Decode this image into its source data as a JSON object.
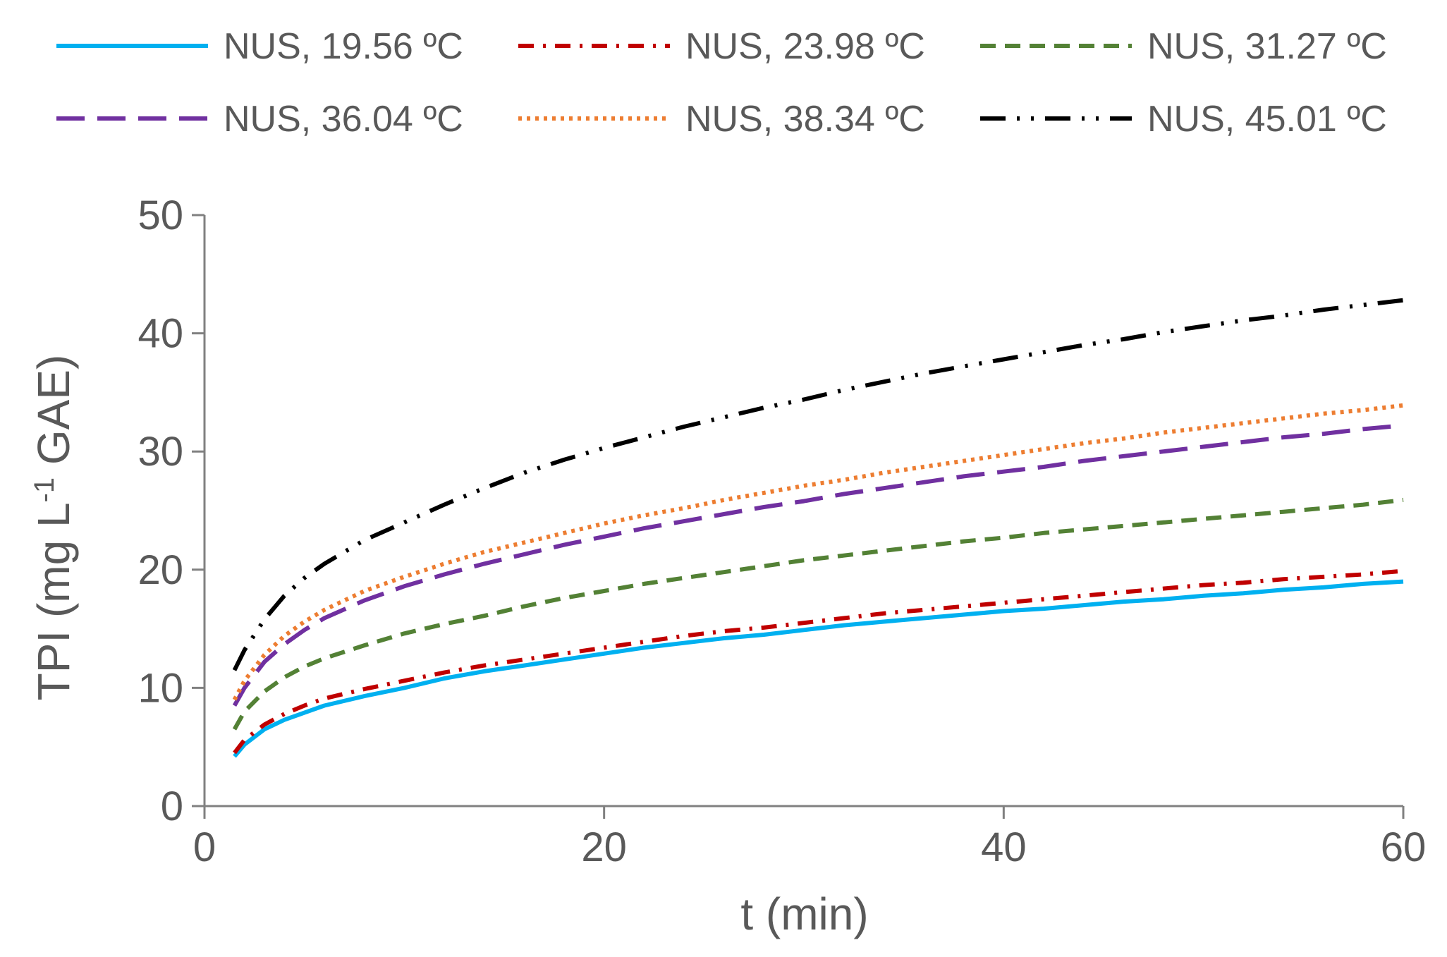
{
  "chart_data": {
    "type": "line",
    "xlabel": "t (min)",
    "ylabel": {
      "main": "TPI (mg L",
      "superscript": "-1",
      "suffix": " GAE)"
    },
    "xlim": [
      0,
      60
    ],
    "ylim": [
      0,
      50
    ],
    "xticks": [
      0,
      20,
      40,
      60
    ],
    "yticks": [
      0,
      10,
      20,
      30,
      40,
      50
    ],
    "grid": false,
    "legend_position": "top",
    "x": [
      1.5,
      2,
      3,
      4,
      5,
      6,
      8,
      10,
      12,
      14,
      16,
      18,
      20,
      22,
      24,
      26,
      28,
      30,
      32,
      34,
      36,
      38,
      40,
      42,
      44,
      46,
      48,
      50,
      52,
      54,
      56,
      58,
      60
    ],
    "series": [
      {
        "name": "NUS, 19.56 ºC",
        "color": "#00B0F0",
        "dash": "solid",
        "values": [
          4.2,
          5.2,
          6.5,
          7.3,
          7.9,
          8.5,
          9.3,
          10.0,
          10.8,
          11.4,
          11.9,
          12.4,
          12.9,
          13.4,
          13.8,
          14.2,
          14.5,
          14.9,
          15.3,
          15.6,
          15.9,
          16.2,
          16.5,
          16.7,
          17.0,
          17.3,
          17.5,
          17.8,
          18.0,
          18.3,
          18.5,
          18.8,
          19.0
        ]
      },
      {
        "name": "NUS, 23.98 ºC",
        "color": "#C00000",
        "dash": "dashdot",
        "values": [
          4.5,
          5.6,
          6.9,
          7.8,
          8.5,
          9.1,
          9.9,
          10.6,
          11.3,
          11.9,
          12.4,
          12.9,
          13.4,
          13.9,
          14.4,
          14.8,
          15.1,
          15.5,
          15.9,
          16.3,
          16.6,
          16.9,
          17.2,
          17.5,
          17.8,
          18.1,
          18.4,
          18.7,
          18.9,
          19.2,
          19.4,
          19.6,
          19.9
        ]
      },
      {
        "name": "NUS, 31.27 ºC",
        "color": "#538135",
        "dash": "dashed",
        "values": [
          6.5,
          8.0,
          9.7,
          10.9,
          11.8,
          12.5,
          13.6,
          14.6,
          15.4,
          16.1,
          16.9,
          17.6,
          18.2,
          18.8,
          19.3,
          19.8,
          20.3,
          20.8,
          21.2,
          21.6,
          22.0,
          22.4,
          22.7,
          23.1,
          23.4,
          23.7,
          24.0,
          24.3,
          24.6,
          24.9,
          25.2,
          25.5,
          25.9
        ]
      },
      {
        "name": "NUS, 36.04 ºC",
        "color": "#7030A0",
        "dash": "longdash",
        "values": [
          8.5,
          10.0,
          12.2,
          13.7,
          14.9,
          15.9,
          17.4,
          18.6,
          19.6,
          20.5,
          21.3,
          22.1,
          22.8,
          23.5,
          24.1,
          24.7,
          25.3,
          25.8,
          26.4,
          26.9,
          27.4,
          27.9,
          28.3,
          28.7,
          29.2,
          29.6,
          30.0,
          30.4,
          30.8,
          31.2,
          31.5,
          31.9,
          32.2
        ]
      },
      {
        "name": "NUS, 38.34 ºC",
        "color": "#ED7D31",
        "dash": "dotted",
        "values": [
          9.0,
          10.6,
          12.8,
          14.4,
          15.6,
          16.6,
          18.2,
          19.4,
          20.5,
          21.5,
          22.3,
          23.1,
          23.9,
          24.6,
          25.2,
          25.9,
          26.5,
          27.1,
          27.6,
          28.2,
          28.7,
          29.2,
          29.7,
          30.2,
          30.7,
          31.1,
          31.6,
          32.0,
          32.4,
          32.8,
          33.2,
          33.5,
          33.9
        ]
      },
      {
        "name": "NUS, 45.01 ºC",
        "color": "#000000",
        "dash": "dashdotdot",
        "values": [
          11.5,
          13.2,
          15.8,
          17.8,
          19.3,
          20.5,
          22.5,
          24.0,
          25.5,
          26.9,
          28.2,
          29.3,
          30.3,
          31.2,
          32.1,
          32.9,
          33.7,
          34.4,
          35.2,
          35.9,
          36.6,
          37.2,
          37.8,
          38.4,
          39.0,
          39.5,
          40.1,
          40.6,
          41.1,
          41.5,
          42.0,
          42.4,
          42.8
        ]
      }
    ]
  }
}
